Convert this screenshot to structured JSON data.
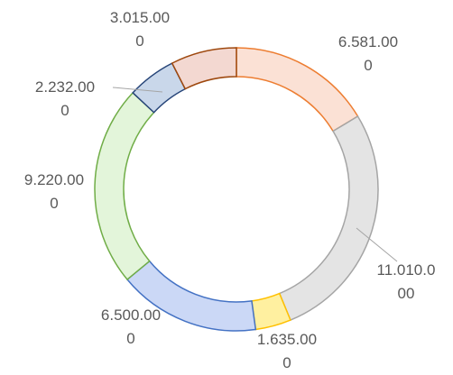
{
  "chart_data": {
    "type": "donut",
    "values": [
      6581000,
      11010000,
      1635000,
      6500000,
      9220000,
      2232000,
      3015000
    ],
    "value_labels": [
      "6.581.000",
      "11.010.000",
      "1.635.000",
      "6.500.000",
      "9.220.000",
      "2.232.000",
      "3.015.000"
    ],
    "colors": [
      "#fbe1d5",
      "#e4e4e4",
      "#fff0a0",
      "#cbd8f6",
      "#e3f5da",
      "#c9d7ea",
      "#f3d8d1"
    ],
    "edge_colors": [
      "#ed7d31",
      "#a5a5a5",
      "#ffc000",
      "#4472c4",
      "#70ad47",
      "#264478",
      "#9e480e"
    ]
  }
}
